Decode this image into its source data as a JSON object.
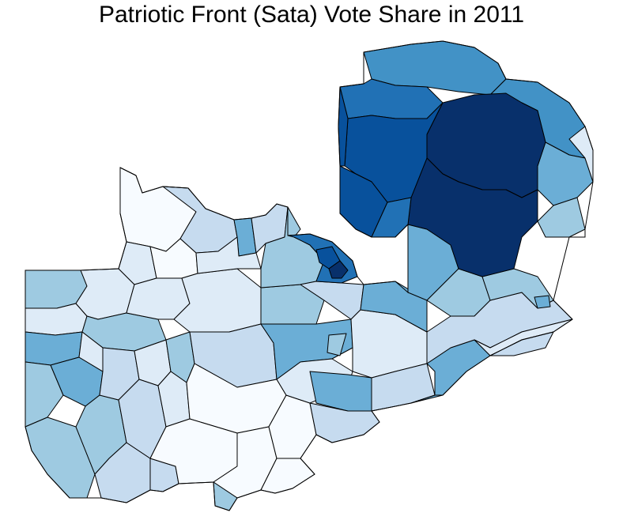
{
  "title": "Patriotic Front (Sata) Vote Share in 2011",
  "palette": {
    "c1": "#f7fbff",
    "c2": "#deebf7",
    "c3": "#c6dbef",
    "c4": "#9ecae1",
    "c5": "#6baed6",
    "c6": "#4292c6",
    "c7": "#2171b5",
    "c8": "#08519c",
    "c9": "#08306b"
  }
}
